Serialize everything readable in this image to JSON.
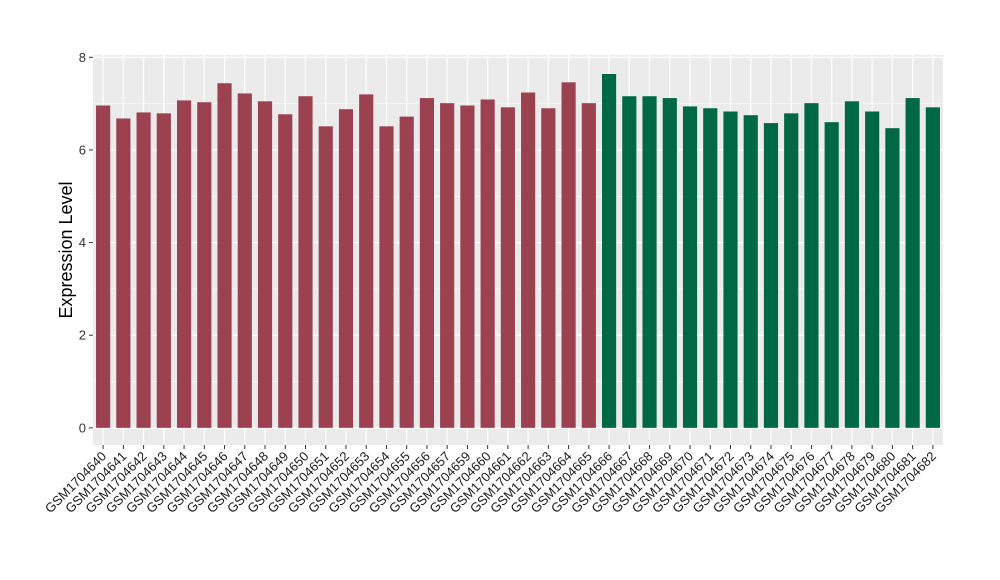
{
  "chart_data": {
    "type": "bar",
    "title": "",
    "xlabel": "",
    "ylabel": "Expression Level",
    "ylim": [
      -0.37,
      8.05
    ],
    "yticks": [
      0,
      2,
      4,
      6,
      8
    ],
    "grid": true,
    "legend": "none",
    "colors": {
      "group1": "#9b4150",
      "group2": "#006845",
      "panel": "#ebebeb",
      "grid": "#ffffff"
    },
    "categories": [
      "GSM1704640",
      "GSM1704641",
      "GSM1704642",
      "GSM1704643",
      "GSM1704644",
      "GSM1704645",
      "GSM1704646",
      "GSM1704647",
      "GSM1704648",
      "GSM1704649",
      "GSM1704650",
      "GSM1704651",
      "GSM1704652",
      "GSM1704653",
      "GSM1704654",
      "GSM1704655",
      "GSM1704656",
      "GSM1704657",
      "GSM1704659",
      "GSM1704660",
      "GSM1704661",
      "GSM1704662",
      "GSM1704663",
      "GSM1704664",
      "GSM1704665",
      "GSM1704666",
      "GSM1704667",
      "GSM1704668",
      "GSM1704669",
      "GSM1704670",
      "GSM1704671",
      "GSM1704672",
      "GSM1704673",
      "GSM1704674",
      "GSM1704675",
      "GSM1704676",
      "GSM1704677",
      "GSM1704678",
      "GSM1704679",
      "GSM1704680",
      "GSM1704681",
      "GSM1704682"
    ],
    "values": [
      6.96,
      6.68,
      6.81,
      6.79,
      7.07,
      7.03,
      7.44,
      7.22,
      7.05,
      6.77,
      7.16,
      6.51,
      6.88,
      7.2,
      6.51,
      6.72,
      7.12,
      7.01,
      6.96,
      7.09,
      6.92,
      7.24,
      6.9,
      7.46,
      7.01,
      7.64,
      7.16,
      7.16,
      7.12,
      6.94,
      6.9,
      6.83,
      6.75,
      6.58,
      6.79,
      7.01,
      6.6,
      7.05,
      6.83,
      6.47,
      7.12,
      6.92
    ],
    "groups": [
      1,
      1,
      1,
      1,
      1,
      1,
      1,
      1,
      1,
      1,
      1,
      1,
      1,
      1,
      1,
      1,
      1,
      1,
      1,
      1,
      1,
      1,
      1,
      1,
      1,
      2,
      2,
      2,
      2,
      2,
      2,
      2,
      2,
      2,
      2,
      2,
      2,
      2,
      2,
      2,
      2,
      2
    ]
  }
}
